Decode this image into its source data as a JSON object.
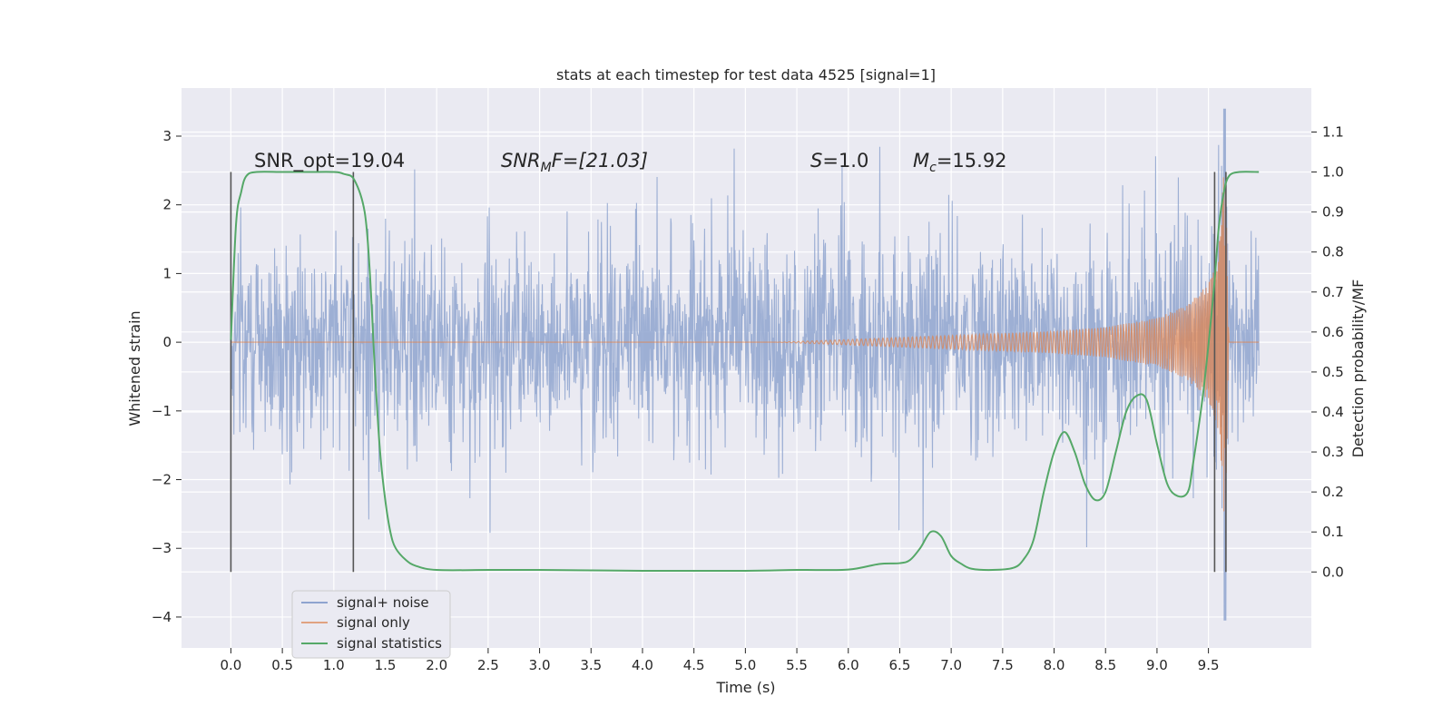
{
  "chart_data": {
    "type": "line",
    "title": "stats at each timestep for test data 4525 [signal=1]",
    "xlabel": "Time (s)",
    "ylabel": "Whitened strain",
    "y2label": "Detection probability/MF",
    "xlim": [
      -0.48,
      10.5
    ],
    "ylim": [
      -4.45,
      3.7
    ],
    "y2lim": [
      -0.19,
      1.21
    ],
    "xticks": [
      "0.0",
      "0.5",
      "1.0",
      "1.5",
      "2.0",
      "2.5",
      "3.0",
      "3.5",
      "4.0",
      "4.5",
      "5.0",
      "5.5",
      "6.0",
      "6.5",
      "7.0",
      "7.5",
      "8.0",
      "8.5",
      "9.0",
      "9.5"
    ],
    "yticks": [
      "3",
      "2",
      "1",
      "0",
      "−1",
      "−2",
      "−3",
      "−4"
    ],
    "y2ticks": [
      "1.1",
      "1.0",
      "0.9",
      "0.8",
      "0.7",
      "0.6",
      "0.5",
      "0.4",
      "0.3",
      "0.2",
      "0.1",
      "0.0"
    ],
    "grid": true,
    "legend_position": "lower-left",
    "annotations": {
      "snr_opt": "SNR_opt=19.04",
      "snr_mf_base": "SNR",
      "snr_mf_sub": "M",
      "snr_mf_rest": "F=[21.03]",
      "s_label": "S",
      "s_value": "=1.0",
      "mc_base": "M",
      "mc_sub": "c",
      "mc_value": "=15.92"
    },
    "vertical_markers_x": [
      0.0,
      1.19,
      9.56,
      9.67
    ],
    "series": [
      {
        "name": "signal+ noise",
        "color": "#8fa4cf",
        "description_kind": "whitened strain with noise",
        "x_range": [
          0.0,
          9.99
        ],
        "typical_envelope": [
          -1.5,
          1.5
        ],
        "max_value": 3.4,
        "min_value": -4.05,
        "burst_x": 9.66
      },
      {
        "name": "signal only",
        "color": "#dd8452",
        "description_kind": "chirp",
        "x_range": [
          0.0,
          9.99
        ],
        "amplitude_points": [
          [
            0.0,
            0.0
          ],
          [
            5.3,
            0.0
          ],
          [
            6.0,
            0.04
          ],
          [
            7.0,
            0.1
          ],
          [
            8.0,
            0.16
          ],
          [
            8.5,
            0.22
          ],
          [
            9.0,
            0.35
          ],
          [
            9.3,
            0.55
          ],
          [
            9.5,
            0.85
          ],
          [
            9.6,
            1.3
          ],
          [
            9.66,
            2.9
          ],
          [
            9.7,
            0.0
          ],
          [
            9.99,
            0.0
          ]
        ]
      },
      {
        "name": "signal statistics",
        "color": "#55a868",
        "axis": "right",
        "points": [
          [
            0.0,
            0.58
          ],
          [
            0.05,
            0.87
          ],
          [
            0.1,
            0.95
          ],
          [
            0.15,
            0.99
          ],
          [
            0.25,
            1.0
          ],
          [
            0.5,
            1.0
          ],
          [
            0.75,
            1.0
          ],
          [
            1.0,
            1.0
          ],
          [
            1.1,
            0.995
          ],
          [
            1.2,
            0.98
          ],
          [
            1.3,
            0.9
          ],
          [
            1.35,
            0.75
          ],
          [
            1.4,
            0.5
          ],
          [
            1.45,
            0.3
          ],
          [
            1.5,
            0.18
          ],
          [
            1.55,
            0.1
          ],
          [
            1.6,
            0.06
          ],
          [
            1.7,
            0.03
          ],
          [
            1.8,
            0.015
          ],
          [
            2.0,
            0.005
          ],
          [
            2.5,
            0.005
          ],
          [
            3.0,
            0.005
          ],
          [
            4.0,
            0.003
          ],
          [
            5.0,
            0.003
          ],
          [
            5.5,
            0.005
          ],
          [
            6.0,
            0.006
          ],
          [
            6.3,
            0.02
          ],
          [
            6.5,
            0.022
          ],
          [
            6.6,
            0.03
          ],
          [
            6.7,
            0.06
          ],
          [
            6.8,
            0.1
          ],
          [
            6.9,
            0.09
          ],
          [
            7.0,
            0.04
          ],
          [
            7.1,
            0.02
          ],
          [
            7.2,
            0.008
          ],
          [
            7.4,
            0.005
          ],
          [
            7.6,
            0.01
          ],
          [
            7.7,
            0.03
          ],
          [
            7.8,
            0.08
          ],
          [
            7.9,
            0.2
          ],
          [
            8.0,
            0.3
          ],
          [
            8.1,
            0.35
          ],
          [
            8.2,
            0.3
          ],
          [
            8.3,
            0.22
          ],
          [
            8.4,
            0.18
          ],
          [
            8.5,
            0.2
          ],
          [
            8.6,
            0.3
          ],
          [
            8.7,
            0.4
          ],
          [
            8.8,
            0.44
          ],
          [
            8.9,
            0.43
          ],
          [
            9.0,
            0.32
          ],
          [
            9.1,
            0.22
          ],
          [
            9.2,
            0.19
          ],
          [
            9.3,
            0.2
          ],
          [
            9.35,
            0.27
          ],
          [
            9.45,
            0.45
          ],
          [
            9.55,
            0.7
          ],
          [
            9.6,
            0.86
          ],
          [
            9.65,
            0.95
          ],
          [
            9.7,
            0.99
          ],
          [
            9.8,
            1.0
          ],
          [
            9.99,
            1.0
          ]
        ]
      }
    ]
  }
}
